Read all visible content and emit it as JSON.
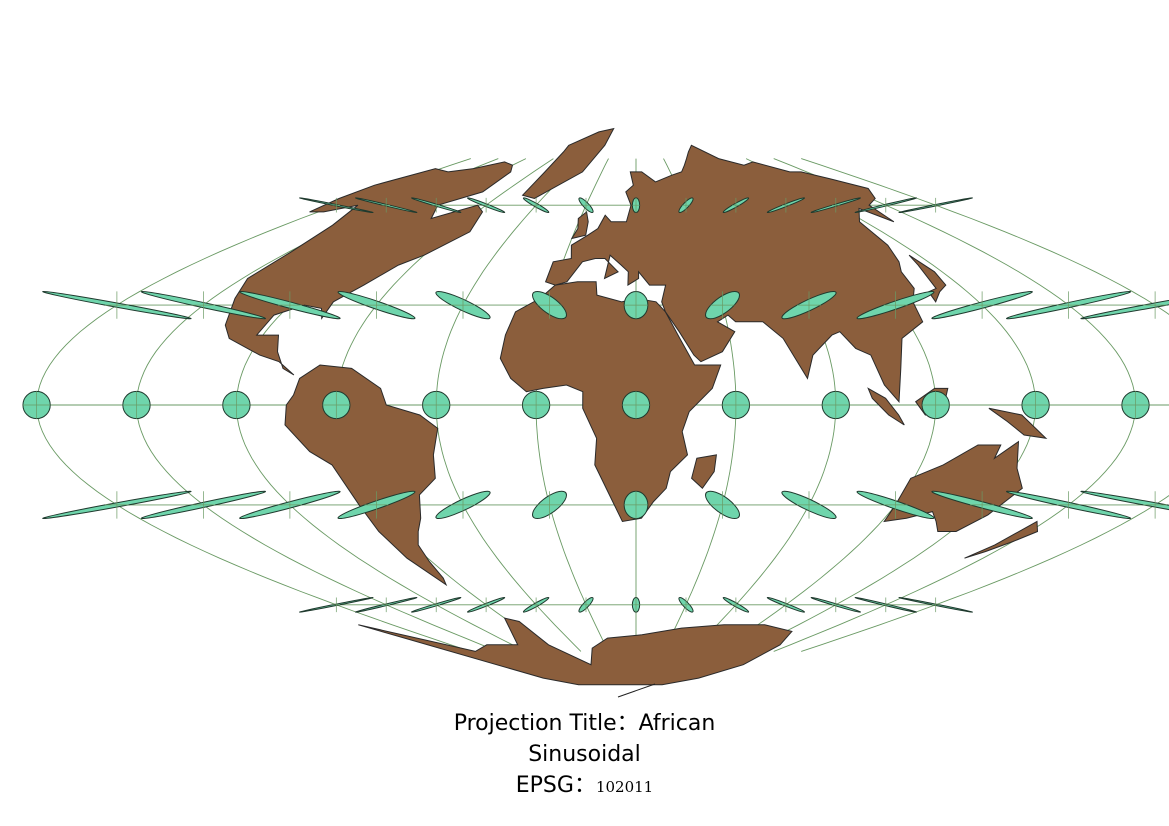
{
  "map": {
    "projection": "sinusoidal",
    "central_meridian": 25,
    "graticule_step_degrees": 30,
    "colors": {
      "background": "#ffffff",
      "land": "#8b5e3c",
      "land_stroke": "#2a2a2a",
      "graticule": "#6a9a64",
      "indicatrix_fill": "#6fd5ac",
      "indicatrix_stroke": "#1f3a2e"
    },
    "indicatrix_latitudes": [
      -60,
      -30,
      0,
      30,
      60
    ],
    "indicatrix_longitudes": [
      -155,
      -125,
      -95,
      -65,
      -35,
      -5,
      25,
      55,
      85,
      115,
      145,
      175,
      205
    ]
  },
  "caption": {
    "line1": "Projection Title：African",
    "line2": "Sinusoidal",
    "epsg_label": "EPSG：",
    "epsg_code": "102011"
  }
}
